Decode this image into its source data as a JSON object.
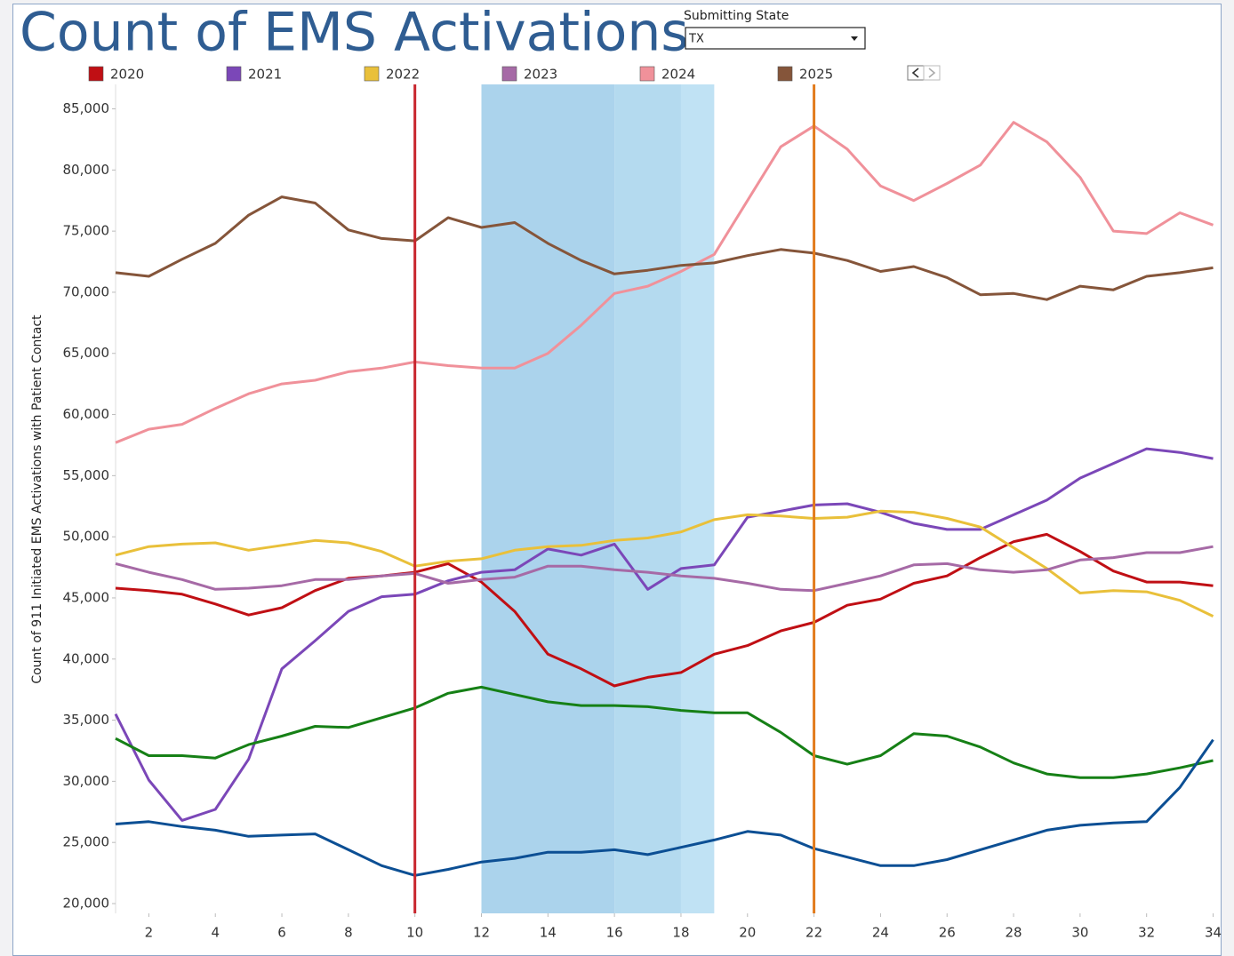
{
  "chart_data": {
    "type": "line",
    "title": "Count of EMS Activations",
    "filter": {
      "label": "Submitting State",
      "value": "TX"
    },
    "y_label": "Count of 911 Initiated EMS Activations with Patient Contact",
    "x": [
      1,
      2,
      3,
      4,
      5,
      6,
      7,
      8,
      9,
      10,
      11,
      12,
      13,
      14,
      15,
      16,
      17,
      18,
      19,
      20,
      21,
      22,
      23,
      24,
      25,
      26,
      27,
      28,
      29,
      30,
      31,
      32,
      33,
      34
    ],
    "xlim": [
      1,
      34.2
    ],
    "xticks": [
      2,
      4,
      6,
      8,
      10,
      12,
      14,
      16,
      18,
      20,
      22,
      24,
      26,
      28,
      30,
      32,
      34
    ],
    "ylim": [
      19200,
      87000
    ],
    "yticks": [
      {
        "value": 20000,
        "label": "20,000"
      },
      {
        "value": 25000,
        "label": "25,000"
      },
      {
        "value": 30000,
        "label": "30,000"
      },
      {
        "value": 35000,
        "label": "35,000"
      },
      {
        "value": 40000,
        "label": "40,000"
      },
      {
        "value": 45000,
        "label": "45,000"
      },
      {
        "value": 50000,
        "label": "50,000"
      },
      {
        "value": 55000,
        "label": "55,000"
      },
      {
        "value": 60000,
        "label": "60,000"
      },
      {
        "value": 65000,
        "label": "65,000"
      },
      {
        "value": 70000,
        "label": "70,000"
      },
      {
        "value": 75000,
        "label": "75,000"
      },
      {
        "value": 80000,
        "label": "80,000"
      },
      {
        "value": 85000,
        "label": "85,000"
      }
    ],
    "bands": [
      {
        "x": [
          12,
          16
        ],
        "color": "#abd3ec"
      },
      {
        "x": [
          16,
          18
        ],
        "color": "#b4daef"
      },
      {
        "x": [
          18,
          19
        ],
        "color": "#c0e2f4"
      }
    ],
    "reference_lines": [
      {
        "x": 10,
        "color": "#c8262e"
      },
      {
        "x": 22,
        "color": "#e27b1c"
      }
    ],
    "series": [
      {
        "name": "2020",
        "color": "#c00f14",
        "values": [
          45800,
          45600,
          45300,
          44500,
          43600,
          44200,
          45600,
          46600,
          46800,
          47100,
          47800,
          46300,
          43900,
          40400,
          39200,
          37800,
          38500,
          38900,
          40400,
          41100,
          42300,
          43000,
          44400,
          44900,
          46200,
          46800,
          48300,
          49600,
          50200,
          48800,
          47200,
          46300,
          46300,
          46000
        ]
      },
      {
        "name": "2021",
        "color": "#7b47b8",
        "values": [
          35500,
          30100,
          26800,
          27700,
          31800,
          39200,
          41500,
          43900,
          45100,
          45300,
          46400,
          47100,
          47300,
          49000,
          48500,
          49400,
          45700,
          47400,
          47700,
          51600,
          52100,
          52600,
          52700,
          52000,
          51100,
          50600,
          50600,
          51800,
          53000,
          54800,
          56000,
          57200,
          56900,
          56400
        ]
      },
      {
        "name": "2022",
        "color": "#e9c03a",
        "values": [
          48500,
          49200,
          49400,
          49500,
          48900,
          49300,
          49700,
          49500,
          48800,
          47600,
          48000,
          48200,
          48900,
          49200,
          49300,
          49700,
          49900,
          50400,
          51400,
          51800,
          51700,
          51500,
          51600,
          52100,
          52000,
          51500,
          50800,
          49100,
          47400,
          45400,
          45600,
          45500,
          44800,
          43500
        ]
      },
      {
        "name": "2023",
        "color": "#a66aa6",
        "values": [
          47800,
          47100,
          46500,
          45700,
          45800,
          46000,
          46500,
          46500,
          46800,
          47000,
          46200,
          46500,
          46700,
          47600,
          47600,
          47300,
          47100,
          46800,
          46600,
          46200,
          45700,
          45600,
          46200,
          46800,
          47700,
          47800,
          47300,
          47100,
          47300,
          48100,
          48300,
          48700,
          48700,
          49200
        ]
      },
      {
        "name": "2024",
        "color": "#f0919a",
        "values": [
          57700,
          58800,
          59200,
          60500,
          61700,
          62500,
          62800,
          63500,
          63800,
          64300,
          64000,
          63800,
          63800,
          65000,
          67300,
          69900,
          70500,
          71700,
          73100,
          77500,
          81900,
          83600,
          81700,
          78700,
          77500,
          78900,
          80400,
          83900,
          82300,
          79400,
          75000,
          74800,
          76500,
          75500
        ]
      },
      {
        "name": "2025",
        "color": "#85553a",
        "values": [
          71600,
          71300,
          72700,
          74000,
          76300,
          77800,
          77300,
          75100,
          74400,
          74200,
          76100,
          75300,
          75700,
          74000,
          72600,
          71500,
          71800,
          72200,
          72400,
          73000,
          73500,
          73200,
          72600,
          71700,
          72100,
          71200,
          69800,
          69900,
          69400,
          70500,
          70200,
          71300,
          71600,
          72000
        ]
      },
      {
        "color": "#168016",
        "values": [
          33500,
          32100,
          32100,
          31900,
          33000,
          33700,
          34500,
          34400,
          35200,
          36000,
          37200,
          37700,
          37100,
          36500,
          36200,
          36200,
          36100,
          35800,
          35600,
          35600,
          34000,
          32100,
          31400,
          32100,
          33900,
          33700,
          32800,
          31500,
          30600,
          30300,
          30300,
          30600,
          31100,
          31700
        ]
      },
      {
        "color": "#0c4f94",
        "values": [
          26500,
          26700,
          26300,
          26000,
          25500,
          25600,
          25700,
          24400,
          23100,
          22300,
          22800,
          23400,
          23700,
          24200,
          24200,
          24400,
          24000,
          24600,
          25200,
          25900,
          25600,
          24500,
          23800,
          23100,
          23100,
          23600,
          24400,
          25200,
          26000,
          26400,
          26600,
          26700,
          29500,
          33400
        ]
      }
    ]
  }
}
